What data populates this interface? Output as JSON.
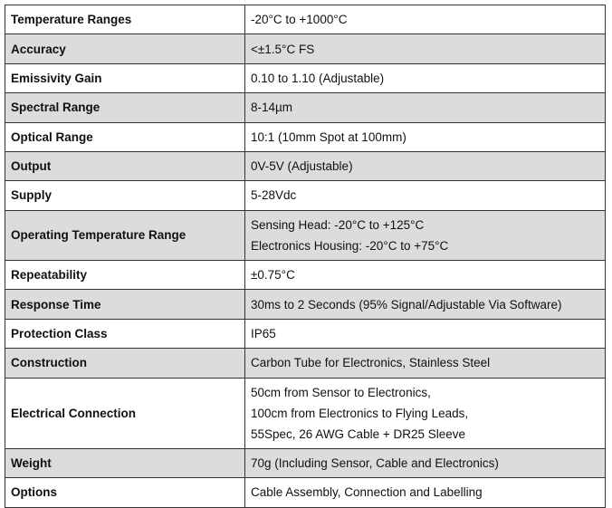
{
  "table": {
    "rows": [
      [
        "Temperature Ranges",
        [
          "-20°C to +1000°C"
        ]
      ],
      [
        "Accuracy",
        [
          "<±1.5°C FS"
        ]
      ],
      [
        "Emissivity Gain",
        [
          "0.10 to 1.10 (Adjustable)"
        ]
      ],
      [
        "Spectral Range",
        [
          "8-14µm"
        ]
      ],
      [
        "Optical Range",
        [
          "10:1 (10mm Spot at 100mm)"
        ]
      ],
      [
        "Output",
        [
          "0V-5V (Adjustable)"
        ]
      ],
      [
        "Supply",
        [
          "5-28Vdc"
        ]
      ],
      [
        "Operating Temperature Range",
        [
          "Sensing Head: -20°C to +125°C",
          "Electronics Housing: -20°C to +75°C"
        ]
      ],
      [
        "Repeatability",
        [
          "±0.75°C"
        ]
      ],
      [
        "Response Time",
        [
          "30ms to 2 Seconds (95% Signal/Adjustable Via Software)"
        ]
      ],
      [
        "Protection Class",
        [
          "IP65"
        ]
      ],
      [
        "Construction",
        [
          "Carbon Tube for Electronics, Stainless Steel"
        ]
      ],
      [
        "Electrical Connection",
        [
          "50cm from Sensor to Electronics,",
          "100cm from Electronics to Flying Leads,",
          "55Spec, 26 AWG Cable + DR25 Sleeve"
        ]
      ],
      [
        "Weight",
        [
          "70g (Including Sensor, Cable and Electronics)"
        ]
      ],
      [
        "Options",
        [
          "Cable Assembly, Connection and Labelling"
        ]
      ]
    ]
  }
}
